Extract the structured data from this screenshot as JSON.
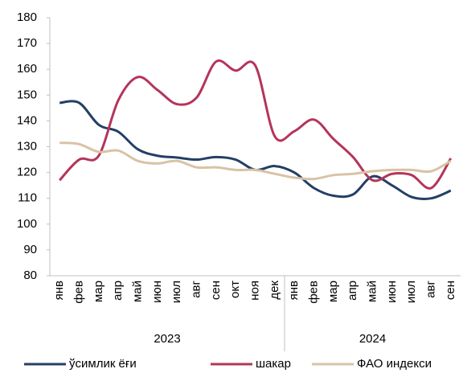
{
  "chart_data": {
    "type": "line",
    "groups": [
      {
        "label": "2023",
        "categories": [
          "янв",
          "фев",
          "мар",
          "апр",
          "май",
          "июн",
          "июл",
          "авг",
          "сен",
          "окт",
          "ноя",
          "дек"
        ]
      },
      {
        "label": "2024",
        "categories": [
          "янв",
          "фев",
          "мар",
          "апр",
          "май",
          "июн",
          "июл",
          "авг",
          "сен"
        ]
      }
    ],
    "series": [
      {
        "name": "ўсимлик ёғи",
        "color": "#243f66",
        "values": [
          147,
          147,
          138.5,
          135.8,
          129,
          126.5,
          125.8,
          125,
          126,
          125,
          121,
          122.5,
          120,
          114,
          111,
          111.5,
          118.5,
          115,
          110.5,
          110,
          113
        ]
      },
      {
        "name": "шакар",
        "color": "#b5345a",
        "values": [
          117,
          125,
          126.5,
          148,
          157,
          152,
          146.5,
          149,
          163,
          159.5,
          161.5,
          134,
          136,
          140.5,
          133,
          126,
          117,
          119.5,
          119,
          114,
          125.5
        ]
      },
      {
        "name": "ФАО индекси",
        "color": "#d8c3a5",
        "values": [
          131.5,
          131,
          128,
          128.5,
          124.5,
          123.5,
          124.5,
          122,
          122,
          121,
          121,
          119.5,
          118,
          117.5,
          119,
          119.5,
          120.5,
          121,
          121,
          120.5,
          124.5
        ]
      }
    ],
    "ylim": [
      80,
      180
    ],
    "yticks": [
      80,
      90,
      100,
      110,
      120,
      130,
      140,
      150,
      160,
      170,
      180
    ],
    "grid": false,
    "legend": "bottom",
    "smooth": true
  }
}
